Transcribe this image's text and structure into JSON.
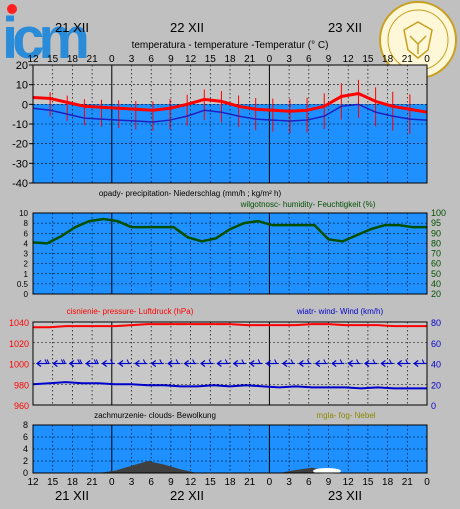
{
  "logo": {
    "text": "icm"
  },
  "days": {
    "top": [
      "21 XII",
      "22 XII",
      "23 XII"
    ],
    "bottom": [
      "21 XII",
      "22 XII",
      "23 XII"
    ]
  },
  "hour_ticks": [
    "12",
    "15",
    "18",
    "21",
    "0",
    "3",
    "6",
    "9",
    "12",
    "15",
    "18",
    "21",
    "0",
    "3",
    "6",
    "9",
    "12",
    "15",
    "18",
    "21",
    "0"
  ],
  "colors": {
    "panel_bg": "#1e90ff",
    "temp_line": "#ff0000",
    "dew_line": "#2020c0",
    "humidity_line": "#005000",
    "pressure_line": "#ff0000",
    "wind_line": "#0000cc",
    "cloud_fill": "#404040"
  },
  "chart_data": [
    {
      "type": "line",
      "title": "temperatura - temperature -Temperatur (° C)",
      "ylim": [
        -40,
        20
      ],
      "y_ticks": [
        "20",
        "10",
        "0",
        "-10",
        "-20",
        "-30",
        "-40"
      ],
      "series": [
        {
          "values": [
            3.5,
            3,
            1,
            -1,
            -1.5,
            -2,
            -2.5,
            -3,
            -2,
            0,
            2.5,
            1.5,
            -1,
            -2.5,
            -3,
            -3.5,
            -3,
            -1,
            4,
            5.5,
            1.5,
            -1,
            -2.5,
            -4
          ]
        },
        {
          "values": [
            -2,
            -3,
            -5,
            -7,
            -7.5,
            -8,
            -8.5,
            -9,
            -8,
            -6,
            -3,
            -4,
            -6,
            -7.5,
            -8,
            -8.5,
            -8,
            -6,
            -1,
            0,
            -4,
            -6,
            -7.5,
            -8
          ]
        }
      ]
    },
    {
      "type": "line",
      "title": "opady- precipitation- Niederschlag (mm/h ; kg/m² h)",
      "right_title": "wilgotnosc- humidity- Feuchtigkeit (%)",
      "ylim": [
        0,
        10
      ],
      "y_ticks": [
        "10",
        "8",
        "6",
        "4",
        "3",
        "2",
        "1",
        "0.5",
        "0"
      ],
      "y2lim": [
        20,
        100
      ],
      "y2_ticks": [
        "100",
        "95",
        "90",
        "80",
        "70",
        "60",
        "50",
        "40",
        "20"
      ],
      "series": [
        {
          "values": [
            81,
            80,
            87,
            93,
            96,
            97,
            96,
            93,
            93,
            93,
            93,
            86,
            82,
            85,
            92,
            95,
            96,
            94,
            94,
            94,
            94,
            84,
            82,
            88,
            92,
            94,
            94,
            93,
            93
          ]
        }
      ]
    },
    {
      "type": "line",
      "title": "cisnienie- pressure- Luftdruck (hPa)",
      "right_title": "wiatr- wind- Wind (km/h)",
      "ylim": [
        960,
        1040
      ],
      "y_ticks": [
        "1040",
        "1020",
        "1000",
        "980",
        "960"
      ],
      "y2lim": [
        0,
        80
      ],
      "y2_ticks": [
        "80",
        "60",
        "40",
        "20",
        "0"
      ],
      "series": [
        {
          "values": [
            1035,
            1035,
            1036,
            1036,
            1036,
            1036,
            1037,
            1038,
            1038,
            1038,
            1038,
            1038,
            1038,
            1037,
            1037,
            1037,
            1037,
            1038,
            1038,
            1037,
            1037,
            1037,
            1036,
            1036,
            1036
          ]
        },
        {
          "values": [
            20,
            21,
            22,
            21,
            21,
            20,
            20,
            19,
            19,
            18,
            18,
            19,
            18,
            19,
            18,
            17,
            18,
            17,
            17,
            17,
            16,
            17,
            16,
            16,
            16
          ]
        }
      ]
    },
    {
      "type": "area",
      "title": "zachmurzenie- clouds- Bewolkung",
      "right_title": "mgla- fog- Nebel",
      "ylim": [
        0,
        8
      ],
      "y_ticks": [
        "8",
        "6",
        "4",
        "2",
        "0"
      ],
      "series": [
        {
          "values": [
            0,
            0,
            0,
            0,
            0,
            0.4,
            1.2,
            2.0,
            1.4,
            0.6,
            0,
            0,
            0,
            0,
            0,
            0,
            0.5,
            0.9,
            0.3,
            0,
            0,
            0,
            0,
            0,
            0
          ]
        }
      ]
    }
  ]
}
